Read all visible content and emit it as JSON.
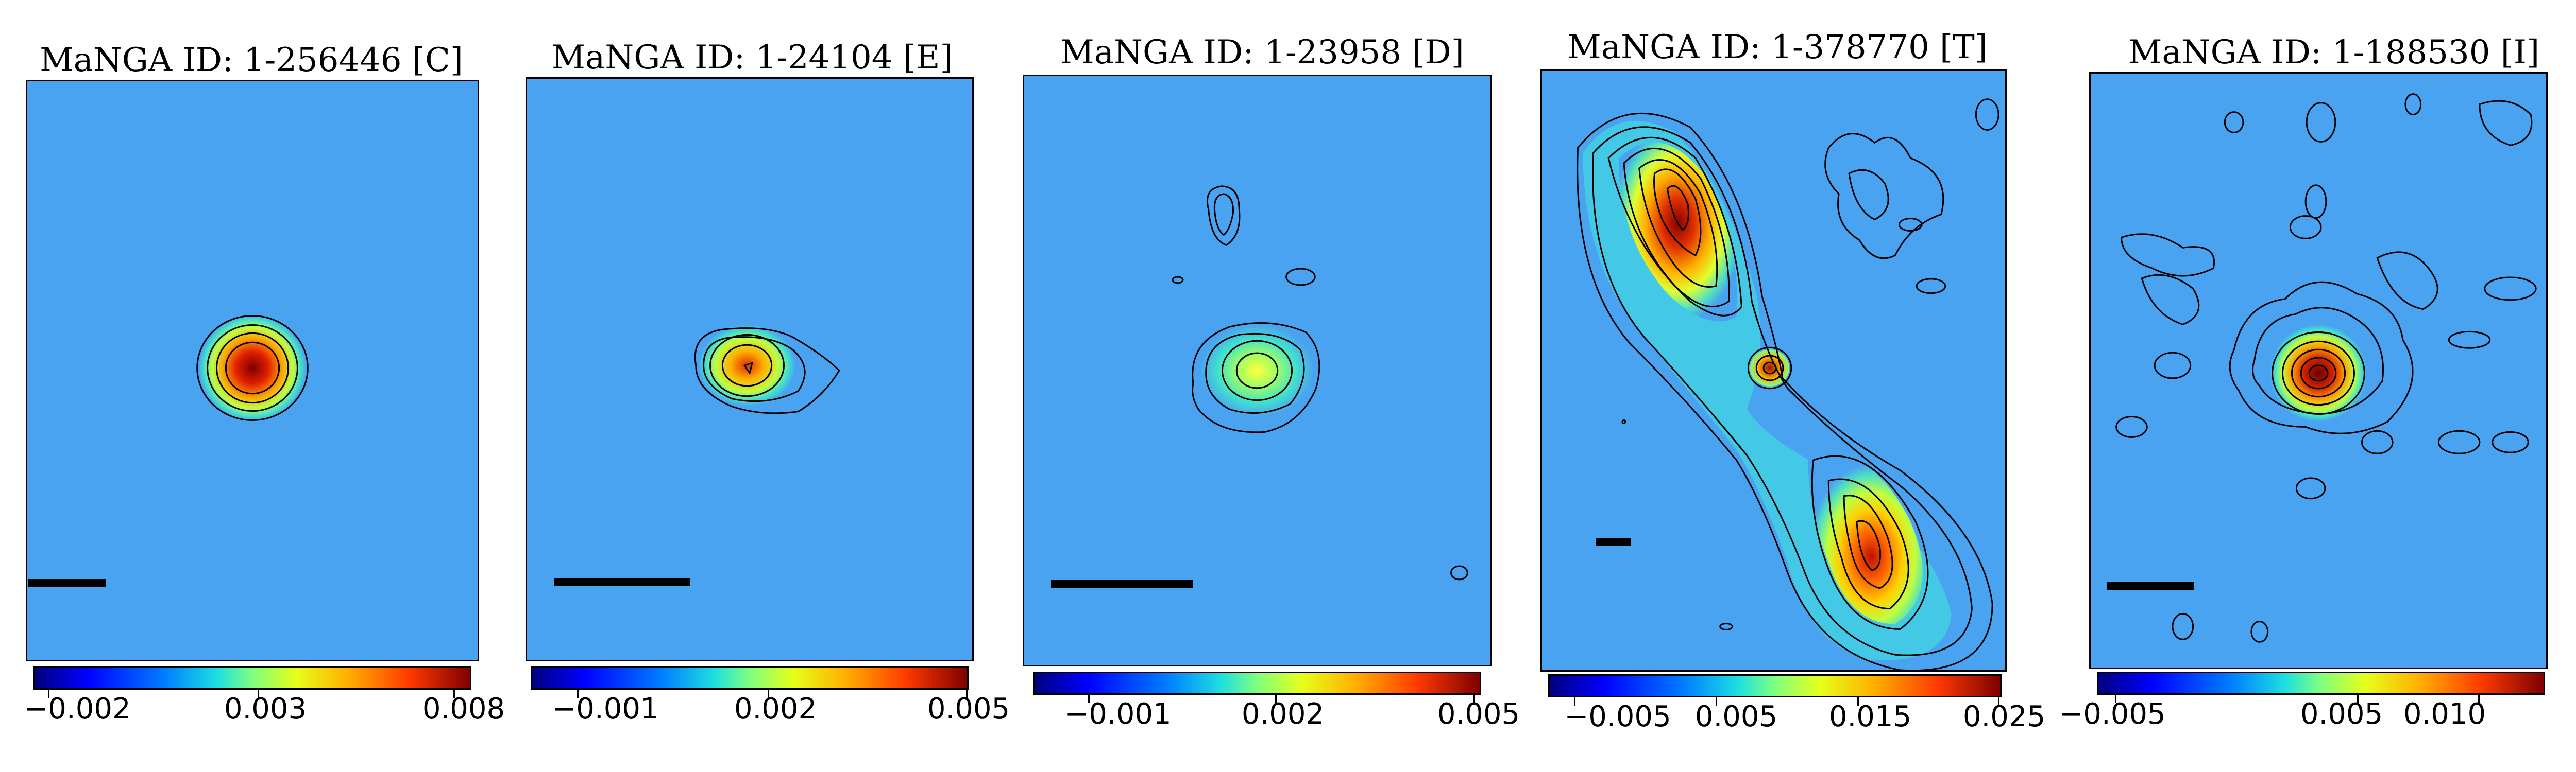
{
  "panels": [
    {
      "title": "MaNGA ID: 1-256446 [C]",
      "colorbar_ticks": [
        "−0.002",
        "0.003",
        "0.008"
      ]
    },
    {
      "title": "MaNGA ID: 1-24104 [E]",
      "colorbar_ticks": [
        "−0.001",
        "0.002",
        "0.005"
      ]
    },
    {
      "title": "MaNGA ID: 1-23958 [D]",
      "colorbar_ticks": [
        "−0.001",
        "0.002",
        "0.005"
      ]
    },
    {
      "title": "MaNGA ID: 1-378770 [T]",
      "colorbar_ticks": [
        "−0.005",
        "0.005",
        "0.015",
        "0.025"
      ]
    },
    {
      "title": "MaNGA ID: 1-188530 [I]",
      "colorbar_ticks": [
        "−0.005",
        "0.005",
        "0.010"
      ]
    }
  ],
  "colormap": "jet",
  "background_color": "#4aa3f0"
}
